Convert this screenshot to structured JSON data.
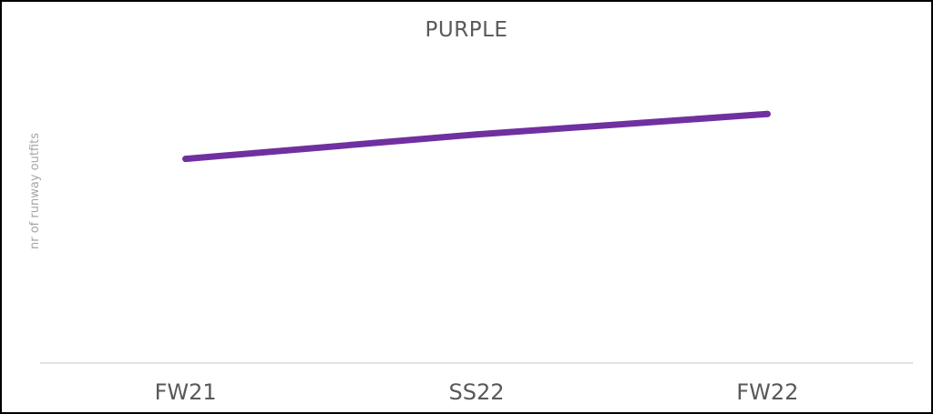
{
  "chart_data": {
    "type": "line",
    "title": "PURPLE",
    "xlabel": "",
    "ylabel": "nr of runway outfits",
    "categories": [
      "FW21",
      "SS22",
      "FW22"
    ],
    "series": [
      {
        "values": [
          5.0,
          5.6,
          6.1
        ],
        "color": "#7030a0"
      }
    ],
    "ylim": [
      0,
      8
    ],
    "grid": false,
    "legend": "none",
    "colors": {
      "line": "#7030a0",
      "axis": "#d9d9d9",
      "title": "#595959",
      "tick_label": "#595959",
      "y_label": "#a6a6a6",
      "border": "#000000"
    }
  }
}
